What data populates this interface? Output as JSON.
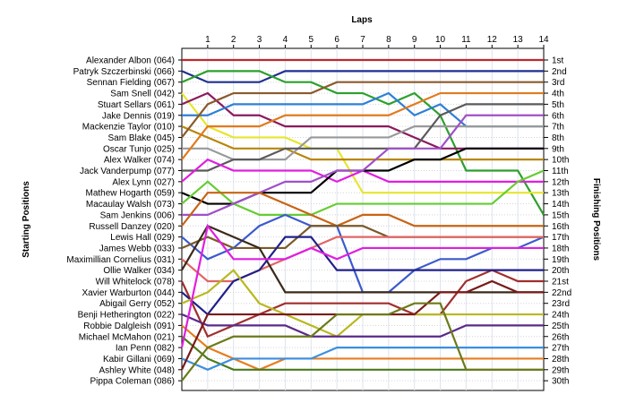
{
  "chart_data": {
    "type": "line",
    "title": "",
    "xlabel": "Laps",
    "ylabel_left": "Starting Positions",
    "ylabel_right": "Finishing Positions",
    "x": [
      0,
      1,
      2,
      3,
      4,
      5,
      6,
      7,
      8,
      9,
      10,
      11,
      12,
      13,
      14
    ],
    "x_tick_labels": [
      "1",
      "2",
      "3",
      "4",
      "5",
      "6",
      "7",
      "8",
      "9",
      "10",
      "11",
      "12",
      "13",
      "14"
    ],
    "ylim": [
      1,
      30
    ],
    "grid": true,
    "finishing_labels": [
      "1st",
      "2nd",
      "3rd",
      "4th",
      "5th",
      "6th",
      "7th",
      "8th",
      "9th",
      "10th",
      "11th",
      "12th",
      "13th",
      "14th",
      "15th",
      "16th",
      "17th",
      "18th",
      "19th",
      "20th",
      "21st",
      "22nd",
      "23rd",
      "24th",
      "25th",
      "26th",
      "27th",
      "28th",
      "29th",
      "30th"
    ],
    "series": [
      {
        "name": "Alexander Albon (064)",
        "color": "#c0272d",
        "values": [
          1,
          1,
          1,
          1,
          1,
          1,
          1,
          1,
          1,
          1,
          1,
          1,
          1,
          1,
          1
        ]
      },
      {
        "name": "Patryk Szczerbinski (066)",
        "color": "#1f2f8f",
        "values": [
          2,
          3,
          3,
          3,
          2,
          2,
          2,
          2,
          2,
          2,
          2,
          2,
          2,
          2,
          2
        ]
      },
      {
        "name": "Sennan Fielding (067)",
        "color": "#2ca02c",
        "values": [
          3,
          2,
          2,
          2,
          3,
          3,
          4,
          4,
          5,
          4,
          6,
          11,
          11,
          11,
          15
        ]
      },
      {
        "name": "Sam Snell (042)",
        "color": "#e6e62e",
        "values": [
          4,
          7,
          8,
          8,
          8,
          9,
          9,
          13,
          13,
          13,
          13,
          13,
          13,
          13,
          13
        ]
      },
      {
        "name": "Stuart Sellars (061)",
        "color": "#8b1a5e",
        "values": [
          5,
          4,
          6,
          6,
          7,
          7,
          7,
          7,
          7,
          8,
          9,
          9,
          9,
          9,
          9
        ]
      },
      {
        "name": "Jake Dennis (019)",
        "color": "#2e7fd6",
        "values": [
          6,
          6,
          5,
          5,
          5,
          5,
          5,
          5,
          4,
          6,
          5,
          7,
          7,
          7,
          7
        ]
      },
      {
        "name": "Mackenzie Taylor (010)",
        "color": "#b8860b",
        "values": [
          7,
          8,
          9,
          9,
          9,
          10,
          10,
          10,
          10,
          10,
          10,
          10,
          10,
          10,
          10
        ]
      },
      {
        "name": "Sam Blake (045)",
        "color": "#8b5a2b",
        "values": [
          8,
          5,
          4,
          4,
          4,
          4,
          3,
          3,
          3,
          3,
          3,
          3,
          3,
          3,
          3
        ]
      },
      {
        "name": "Oscar Tunjo (025)",
        "color": "#999999",
        "values": [
          9,
          9,
          10,
          10,
          10,
          8,
          8,
          8,
          8,
          7,
          7,
          7,
          7,
          7,
          7
        ]
      },
      {
        "name": "Alex Walker (074)",
        "color": "#e07b1e",
        "values": [
          10,
          7,
          7,
          7,
          6,
          6,
          6,
          6,
          6,
          5,
          4,
          4,
          4,
          4,
          4
        ]
      },
      {
        "name": "Jack Vanderpump (077)",
        "color": "#5a5a5a",
        "values": [
          11,
          11,
          10,
          10,
          9,
          9,
          9,
          9,
          9,
          9,
          6,
          5,
          5,
          5,
          5
        ]
      },
      {
        "name": "Alex Lynn (027)",
        "color": "#e01ee0",
        "values": [
          12,
          10,
          11,
          11,
          11,
          11,
          12,
          11,
          12,
          12,
          12,
          12,
          12,
          12,
          12
        ]
      },
      {
        "name": "Mathew Hogarth (059)",
        "color": "#000000",
        "values": [
          13,
          14,
          14,
          13,
          13,
          13,
          11,
          11,
          11,
          10,
          10,
          9,
          9,
          9,
          9
        ]
      },
      {
        "name": "Macaulay Walsh (073)",
        "color": "#66cc33",
        "values": [
          14,
          12,
          14,
          15,
          15,
          15,
          14,
          14,
          14,
          14,
          14,
          14,
          14,
          12,
          11
        ]
      },
      {
        "name": "Sam Jenkins (006)",
        "color": "#a050c8",
        "values": [
          15,
          15,
          14,
          13,
          12,
          12,
          11,
          11,
          9,
          9,
          9,
          6,
          6,
          6,
          6
        ]
      },
      {
        "name": "Russell Danzey (020)",
        "color": "#c86414",
        "values": [
          16,
          13,
          13,
          13,
          14,
          15,
          16,
          15,
          15,
          16,
          16,
          16,
          16,
          16,
          16
        ]
      },
      {
        "name": "Lewis Hall (029)",
        "color": "#3c5acd",
        "values": [
          17,
          19,
          18,
          16,
          15,
          16,
          16,
          22,
          22,
          20,
          19,
          19,
          18,
          18,
          17
        ]
      },
      {
        "name": "James Webb (033)",
        "color": "#7a5a28",
        "values": [
          18,
          17,
          18,
          18,
          18,
          16,
          16,
          16,
          17,
          17,
          17,
          17,
          17,
          17,
          17
        ]
      },
      {
        "name": "Maximillian Cornelius (031)",
        "color": "#e06666",
        "values": [
          19,
          21,
          21,
          20,
          19,
          18,
          17,
          17,
          17,
          17,
          17,
          17,
          17,
          17,
          17
        ]
      },
      {
        "name": "Ollie Walker (034)",
        "color": "#3b2a1a",
        "values": [
          20,
          16,
          17,
          18,
          22,
          22,
          22,
          22,
          22,
          22,
          22,
          22,
          22,
          22,
          22
        ]
      },
      {
        "name": "Will Whitelock (078)",
        "color": "#a12e2e",
        "values": [
          21,
          26,
          25,
          24,
          23,
          23,
          23,
          23,
          23,
          24,
          24,
          21,
          20,
          21,
          21
        ]
      },
      {
        "name": "Xavier Warburton (044)",
        "color": "#20208a",
        "values": [
          22,
          24,
          21,
          20,
          17,
          17,
          20,
          20,
          20,
          20,
          20,
          20,
          20,
          20,
          20
        ]
      },
      {
        "name": "Abigail Gerry (052)",
        "color": "#b8b820",
        "values": [
          23,
          22,
          20,
          23,
          24,
          25,
          26,
          24,
          24,
          24,
          24,
          24,
          24,
          24,
          24
        ]
      },
      {
        "name": "Benji Hetherington (022)",
        "color": "#5a2a8a",
        "values": [
          24,
          25,
          25,
          25,
          25,
          26,
          26,
          26,
          26,
          26,
          26,
          25,
          25,
          25,
          25
        ]
      },
      {
        "name": "Robbie Dalgleish (091)",
        "color": "#e67e22",
        "values": [
          25,
          27,
          28,
          29,
          28,
          28,
          28,
          28,
          28,
          28,
          28,
          28,
          28,
          28,
          28
        ]
      },
      {
        "name": "Michael McMahon (021)",
        "color": "#4a7a1a",
        "values": [
          26,
          28,
          29,
          29,
          29,
          29,
          29,
          29,
          29,
          29,
          29,
          29,
          29,
          29,
          29
        ]
      },
      {
        "name": "Ian Penn (082)",
        "color": "#e01ee0",
        "values": [
          27,
          16,
          19,
          19,
          19,
          18,
          19,
          18,
          18,
          18,
          18,
          18,
          18,
          18,
          18
        ]
      },
      {
        "name": "Kabir Gillani (069)",
        "color": "#3a8fe0",
        "values": [
          28,
          29,
          28,
          28,
          28,
          28,
          27,
          27,
          27,
          27,
          27,
          27,
          27,
          27,
          27
        ]
      },
      {
        "name": "Ashley White (048)",
        "color": "#7a1a1a",
        "values": [
          29,
          24,
          24,
          24,
          24,
          24,
          24,
          24,
          24,
          24,
          22,
          22,
          21,
          22,
          22
        ]
      },
      {
        "name": "Pippa Coleman (086)",
        "color": "#6c7a1a",
        "values": [
          30,
          27,
          26,
          26,
          26,
          26,
          24,
          24,
          24,
          23,
          23,
          29,
          29,
          29,
          29
        ]
      }
    ]
  }
}
